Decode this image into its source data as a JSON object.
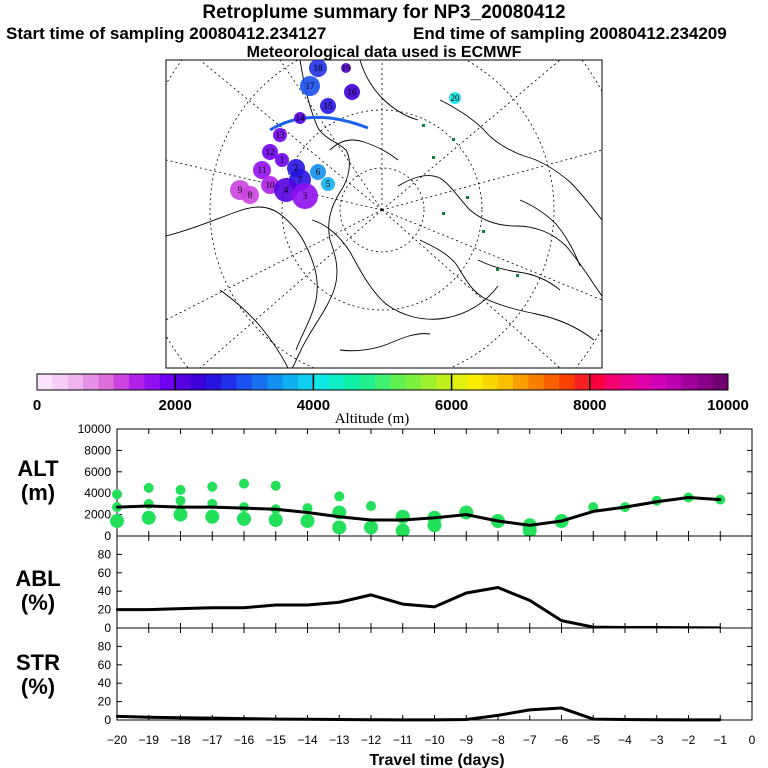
{
  "header": {
    "title": "Retroplume summary for NP3_20080412",
    "start": "Start time of sampling 20080412.234127",
    "end": "End time of sampling 20080412.234209",
    "met": "Meteorological data used is ECMWF"
  },
  "colorbar": {
    "label": "Altitude (m)",
    "ticks": [
      "0",
      "2000",
      "4000",
      "6000",
      "8000",
      "10000"
    ],
    "colors": [
      "#fbe3fb",
      "#f5cdf5",
      "#efb3ef",
      "#e690e6",
      "#dc6edc",
      "#cc44e0",
      "#b020e8",
      "#9010f0",
      "#7000f0",
      "#5400e0",
      "#3c00d8",
      "#2814e0",
      "#2030e8",
      "#1c50f0",
      "#1870f0",
      "#1490f0",
      "#10b0f0",
      "#10d0f0",
      "#10e8e8",
      "#10f0c8",
      "#10f0a8",
      "#20f090",
      "#40f070",
      "#60f050",
      "#80f040",
      "#a0f030",
      "#c0f020",
      "#e0f010",
      "#f8f000",
      "#f8d800",
      "#f8c000",
      "#f8a000",
      "#f88000",
      "#f86000",
      "#f84000",
      "#f82020",
      "#f80040",
      "#f00070",
      "#e80090",
      "#e000a8",
      "#d000b8",
      "#b800b0",
      "#a00098",
      "#880088",
      "#700070"
    ]
  },
  "map": {
    "trajectory_labels": [
      "20",
      "19",
      "18",
      "17",
      "16",
      "15",
      "14",
      "13",
      "12",
      "11",
      "10",
      "9",
      "8",
      "7",
      "6",
      "5",
      "4",
      "3",
      "2",
      "1"
    ]
  },
  "panels": {
    "alt": {
      "label_top": "ALT",
      "label_bottom": "(m)"
    },
    "abl": {
      "label_top": "ABL",
      "label_bottom": "(%)"
    },
    "str": {
      "label_top": "STR",
      "label_bottom": "(%)"
    },
    "xlabel": "Travel time (days)"
  },
  "chart_data": [
    {
      "type": "line",
      "name": "ALT",
      "ylabel": "ALT (m)",
      "ylim": [
        0,
        10000
      ],
      "yticks": [
        "10000",
        "8000",
        "6000",
        "4000",
        "2000",
        "0"
      ],
      "x": [
        -20,
        -19,
        -18,
        -17,
        -16,
        -15,
        -14,
        -13,
        -12,
        -11,
        -10,
        -9,
        -8,
        -7,
        -6,
        -5,
        -4,
        -3,
        -2,
        -1
      ],
      "values": [
        2700,
        2800,
        2700,
        2700,
        2600,
        2500,
        2200,
        1800,
        1500,
        1500,
        1700,
        2000,
        1400,
        1000,
        1400,
        2300,
        2700,
        3200,
        3600,
        3400
      ],
      "xticks": [
        "−20",
        "−19",
        "−18",
        "−17",
        "−16",
        "−15",
        "−14",
        "−13",
        "−12",
        "−11",
        "−10",
        "−9",
        "−8",
        "−7",
        "−6",
        "−5",
        "−4",
        "−3",
        "−2",
        "−1",
        "0"
      ],
      "xlabel": "Travel time (days)",
      "scatter": [
        {
          "x": -20,
          "y": 3900
        },
        {
          "x": -20,
          "y": 2700
        },
        {
          "x": -20,
          "y": 1400
        },
        {
          "x": -19,
          "y": 4500
        },
        {
          "x": -19,
          "y": 3000
        },
        {
          "x": -19,
          "y": 1700
        },
        {
          "x": -18,
          "y": 4300
        },
        {
          "x": -18,
          "y": 3300
        },
        {
          "x": -18,
          "y": 2000
        },
        {
          "x": -17,
          "y": 4600
        },
        {
          "x": -17,
          "y": 3000
        },
        {
          "x": -17,
          "y": 1800
        },
        {
          "x": -16,
          "y": 4900
        },
        {
          "x": -16,
          "y": 2700
        },
        {
          "x": -16,
          "y": 1600
        },
        {
          "x": -15,
          "y": 4700
        },
        {
          "x": -15,
          "y": 2500
        },
        {
          "x": -15,
          "y": 1500
        },
        {
          "x": -14,
          "y": 2600
        },
        {
          "x": -14,
          "y": 1400
        },
        {
          "x": -13,
          "y": 3700
        },
        {
          "x": -13,
          "y": 2200
        },
        {
          "x": -13,
          "y": 800
        },
        {
          "x": -12,
          "y": 2800
        },
        {
          "x": -12,
          "y": 800
        },
        {
          "x": -11,
          "y": 1800
        },
        {
          "x": -11,
          "y": 500
        },
        {
          "x": -10,
          "y": 1700
        },
        {
          "x": -10,
          "y": 1000
        },
        {
          "x": -9,
          "y": 2200
        },
        {
          "x": -8,
          "y": 1400
        },
        {
          "x": -7,
          "y": 1000
        },
        {
          "x": -7,
          "y": 500
        },
        {
          "x": -6,
          "y": 1400
        },
        {
          "x": -5,
          "y": 2700
        },
        {
          "x": -4,
          "y": 2700
        },
        {
          "x": -3,
          "y": 3300
        },
        {
          "x": -2,
          "y": 3600
        },
        {
          "x": -1,
          "y": 3400
        }
      ]
    },
    {
      "type": "line",
      "name": "ABL",
      "ylabel": "ABL (%)",
      "ylim": [
        0,
        100
      ],
      "yticks": [
        "80",
        "60",
        "40",
        "20",
        "0"
      ],
      "x": [
        -20,
        -19,
        -18,
        -17,
        -16,
        -15,
        -14,
        -13,
        -12,
        -11,
        -10,
        -9,
        -8,
        -7,
        -6,
        -5,
        -4,
        -3,
        -2,
        -1
      ],
      "values": [
        20,
        20,
        21,
        22,
        22,
        25,
        25,
        28,
        36,
        26,
        23,
        38,
        44,
        30,
        8,
        1,
        0.5,
        0.5,
        0.3,
        0.2
      ]
    },
    {
      "type": "line",
      "name": "STR",
      "ylabel": "STR (%)",
      "ylim": [
        0,
        100
      ],
      "yticks": [
        "80",
        "60",
        "40",
        "20",
        "0"
      ],
      "x": [
        -20,
        -19,
        -18,
        -17,
        -16,
        -15,
        -14,
        -13,
        -12,
        -11,
        -10,
        -9,
        -8,
        -7,
        -6,
        -5,
        -4,
        -3,
        -2,
        -1
      ],
      "values": [
        4,
        3,
        2.5,
        2,
        1.5,
        1,
        0.8,
        0.5,
        0.3,
        0.2,
        0.2,
        0.5,
        5,
        11,
        13,
        1,
        0.5,
        0.3,
        0.2,
        0.2
      ]
    }
  ]
}
